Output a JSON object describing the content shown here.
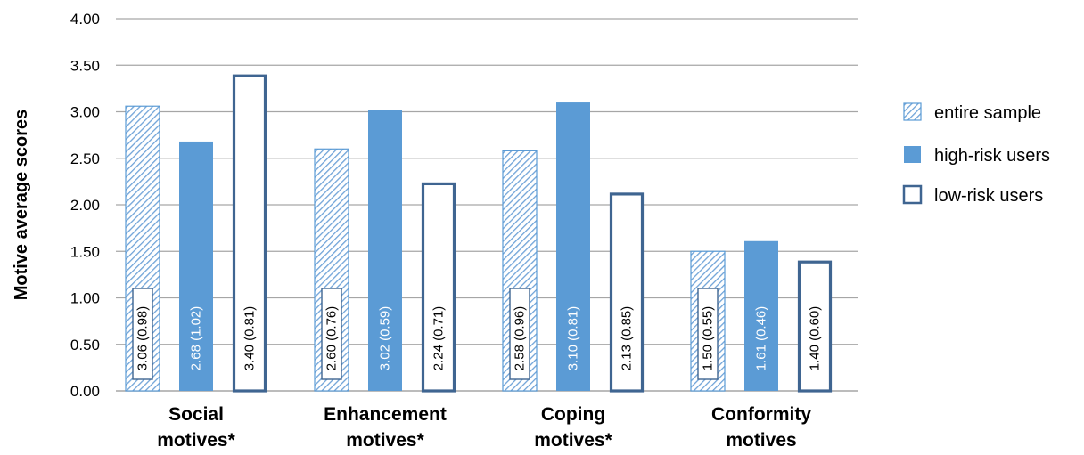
{
  "chart_data": {
    "type": "bar",
    "ylabel": "Motive average scores",
    "ylim": [
      0,
      4
    ],
    "yticks": [
      "0.00",
      "0.50",
      "1.00",
      "1.50",
      "2.00",
      "2.50",
      "3.00",
      "3.50",
      "4.00"
    ],
    "categories": [
      [
        "Social",
        "motives*"
      ],
      [
        "Enhancement",
        "motives*"
      ],
      [
        "Coping",
        "motives*"
      ],
      [
        "Conformity",
        "motives"
      ]
    ],
    "grid": true,
    "legend_position": "right",
    "series": [
      {
        "name": "entire sample",
        "style": "hatched",
        "color": "#5b9bd5",
        "values": [
          3.06,
          2.6,
          2.58,
          1.5
        ],
        "labels": [
          "3.06 (0.98)",
          "2.60 (0.76)",
          "2.58 (0.96)",
          "1.50 (0.55)"
        ]
      },
      {
        "name": "high-risk users",
        "style": "solid",
        "color": "#5b9bd5",
        "values": [
          2.68,
          3.02,
          3.1,
          1.61
        ],
        "labels": [
          "2.68 (1.02)",
          "3.02 (0.59)",
          "3.10 (0.81)",
          "1.61 (0.46)"
        ]
      },
      {
        "name": "low-risk users",
        "style": "outline",
        "color": "#3f6591",
        "values": [
          3.4,
          2.24,
          2.13,
          1.4
        ],
        "labels": [
          "3.40 (0.81)",
          "2.24 (0.71)",
          "2.13 (0.85)",
          "1.40 (0.60)"
        ]
      }
    ]
  }
}
